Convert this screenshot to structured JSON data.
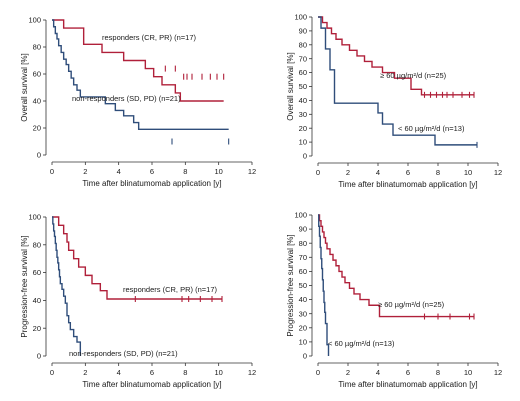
{
  "colors": {
    "red": "#b0203a",
    "blue": "#2f4d7a",
    "axis": "#333333"
  },
  "chart_data": [
    {
      "type": "line",
      "step": true,
      "xlabel": "Time after blinatumomab application [y]",
      "ylabel": "Overall survival [%]",
      "xlim": [
        0,
        12
      ],
      "ylim": [
        0,
        100
      ],
      "xticks": [
        "0",
        "2",
        "4",
        "6",
        "8",
        "10",
        "12"
      ],
      "yticks": [
        "0",
        "20",
        "40",
        "60",
        "80",
        "100"
      ],
      "series": [
        {
          "name": "responders (CR, PR) (n=17)",
          "color": "red",
          "x": [
            0,
            0.7,
            1.9,
            3.0,
            4.3,
            5.6,
            6.1,
            6.6,
            7.4,
            7.7
          ],
          "y": [
            100,
            94,
            82,
            76,
            70,
            64,
            58,
            52,
            46,
            40
          ],
          "censor_x": [
            6.8,
            7.4,
            7.9,
            8.1,
            8.4,
            9.0,
            9.5,
            9.9,
            10.3
          ],
          "censor_y": [
            64,
            64,
            58,
            58,
            58,
            58,
            58,
            58,
            58
          ]
        },
        {
          "name": "non-responders (SD, PD) (n=21)",
          "color": "blue",
          "x": [
            0,
            0.1,
            0.2,
            0.3,
            0.4,
            0.55,
            0.7,
            0.85,
            1.0,
            1.15,
            1.3,
            1.5,
            1.7,
            3.2,
            3.8,
            4.3,
            4.9,
            5.2
          ],
          "y": [
            100,
            95,
            90,
            86,
            81,
            76,
            71,
            67,
            62,
            57,
            52,
            48,
            43,
            38,
            33,
            29,
            24,
            19
          ],
          "censor_x": [
            7.2,
            10.6
          ],
          "censor_y": [
            10,
            10
          ]
        }
      ]
    },
    {
      "type": "line",
      "step": true,
      "xlabel": "Time after blinatumomab application [y]",
      "ylabel": "Overall survival [%]",
      "xlim": [
        0,
        12
      ],
      "ylim": [
        0,
        100
      ],
      "xticks": [
        "0",
        "2",
        "4",
        "6",
        "8",
        "10",
        "12"
      ],
      "yticks": [
        "0",
        "10",
        "20",
        "30",
        "40",
        "50",
        "60",
        "70",
        "80",
        "90",
        "100"
      ],
      "series": [
        {
          "name": "≥ 60 µg/m²/d (n=25)",
          "color": "red",
          "x": [
            0,
            0.3,
            0.6,
            0.9,
            1.2,
            1.6,
            2.1,
            2.6,
            3.1,
            3.6,
            4.3,
            5.1,
            6.2,
            6.9
          ],
          "y": [
            100,
            96,
            92,
            88,
            84,
            80,
            76,
            72,
            68,
            64,
            60,
            56,
            48,
            44
          ],
          "censor_x": [
            7.1,
            7.5,
            7.9,
            8.3,
            8.6,
            9.0,
            9.6,
            10.1,
            10.4
          ],
          "censor_y": [
            44,
            44,
            44,
            44,
            44,
            44,
            44,
            44,
            44
          ]
        },
        {
          "name": "< 60 µg/m²/d (n=13)",
          "color": "blue",
          "x": [
            0,
            0.2,
            0.5,
            0.8,
            1.1,
            4.0,
            4.3,
            5.0,
            7.8
          ],
          "y": [
            100,
            92,
            77,
            62,
            38,
            31,
            23,
            15,
            8
          ],
          "censor_x": [
            10.6
          ],
          "censor_y": [
            8
          ]
        }
      ]
    },
    {
      "type": "line",
      "step": true,
      "xlabel": "Time after blinatumomab application [y]",
      "ylabel": "Progression-free survival [%]",
      "xlim": [
        0,
        12
      ],
      "ylim": [
        0,
        100
      ],
      "xticks": [
        "0",
        "2",
        "4",
        "6",
        "8",
        "10",
        "12"
      ],
      "yticks": [
        "0",
        "20",
        "40",
        "60",
        "80",
        "100"
      ],
      "series": [
        {
          "name": "responders (CR, PR) (n=17)",
          "color": "red",
          "x": [
            0,
            0.4,
            0.7,
            0.9,
            1.0,
            1.3,
            1.6,
            2.0,
            2.4,
            2.9,
            3.3,
            3.8,
            4.1,
            4.3
          ],
          "y": [
            100,
            94,
            88,
            82,
            76,
            70,
            64,
            58,
            52,
            47,
            41,
            41,
            41,
            41
          ],
          "censor_x": [
            5.0,
            7.8,
            8.2,
            8.9,
            9.6,
            10.2
          ],
          "censor_y": [
            41,
            41,
            41,
            41,
            41,
            41
          ]
        },
        {
          "name": "non-responders (SD, PD) (n=21)",
          "color": "blue",
          "x": [
            0,
            0.05,
            0.1,
            0.15,
            0.2,
            0.25,
            0.3,
            0.35,
            0.4,
            0.45,
            0.5,
            0.6,
            0.7,
            0.8,
            0.9,
            1.0,
            1.1,
            1.3,
            1.5,
            1.7
          ],
          "y": [
            100,
            95,
            90,
            86,
            81,
            76,
            71,
            67,
            62,
            57,
            52,
            48,
            43,
            38,
            29,
            24,
            19,
            14,
            10,
            0
          ],
          "censor_x": [],
          "censor_y": []
        }
      ]
    },
    {
      "type": "line",
      "step": true,
      "xlabel": "Time after blinatumomab application [y]",
      "ylabel": "Progression-free survival [%]",
      "xlim": [
        0,
        12
      ],
      "ylim": [
        0,
        100
      ],
      "xticks": [
        "0",
        "2",
        "4",
        "6",
        "8",
        "10",
        "12"
      ],
      "yticks": [
        "0",
        "10",
        "20",
        "30",
        "40",
        "50",
        "60",
        "70",
        "80",
        "90",
        "100"
      ],
      "series": [
        {
          "name": "≥ 60 µg/m²/d (n=25)",
          "color": "red",
          "x": [
            0,
            0.1,
            0.2,
            0.3,
            0.4,
            0.5,
            0.6,
            0.8,
            1.0,
            1.2,
            1.4,
            1.6,
            1.8,
            2.1,
            2.4,
            2.8,
            3.4,
            4.1
          ],
          "y": [
            100,
            96,
            92,
            88,
            84,
            80,
            76,
            72,
            68,
            64,
            60,
            56,
            52,
            48,
            44,
            40,
            36,
            28
          ],
          "censor_x": [
            7.1,
            8.0,
            8.8,
            10.1,
            10.4
          ],
          "censor_y": [
            28,
            28,
            28,
            28,
            28
          ]
        },
        {
          "name": "< 60 µg/m²/d (n=13)",
          "color": "blue",
          "x": [
            0,
            0.05,
            0.1,
            0.15,
            0.2,
            0.25,
            0.3,
            0.35,
            0.4,
            0.45,
            0.5,
            0.6,
            0.7
          ],
          "y": [
            100,
            92,
            85,
            77,
            69,
            62,
            54,
            46,
            38,
            31,
            23,
            8,
            0
          ],
          "censor_x": [],
          "censor_y": []
        }
      ]
    }
  ]
}
